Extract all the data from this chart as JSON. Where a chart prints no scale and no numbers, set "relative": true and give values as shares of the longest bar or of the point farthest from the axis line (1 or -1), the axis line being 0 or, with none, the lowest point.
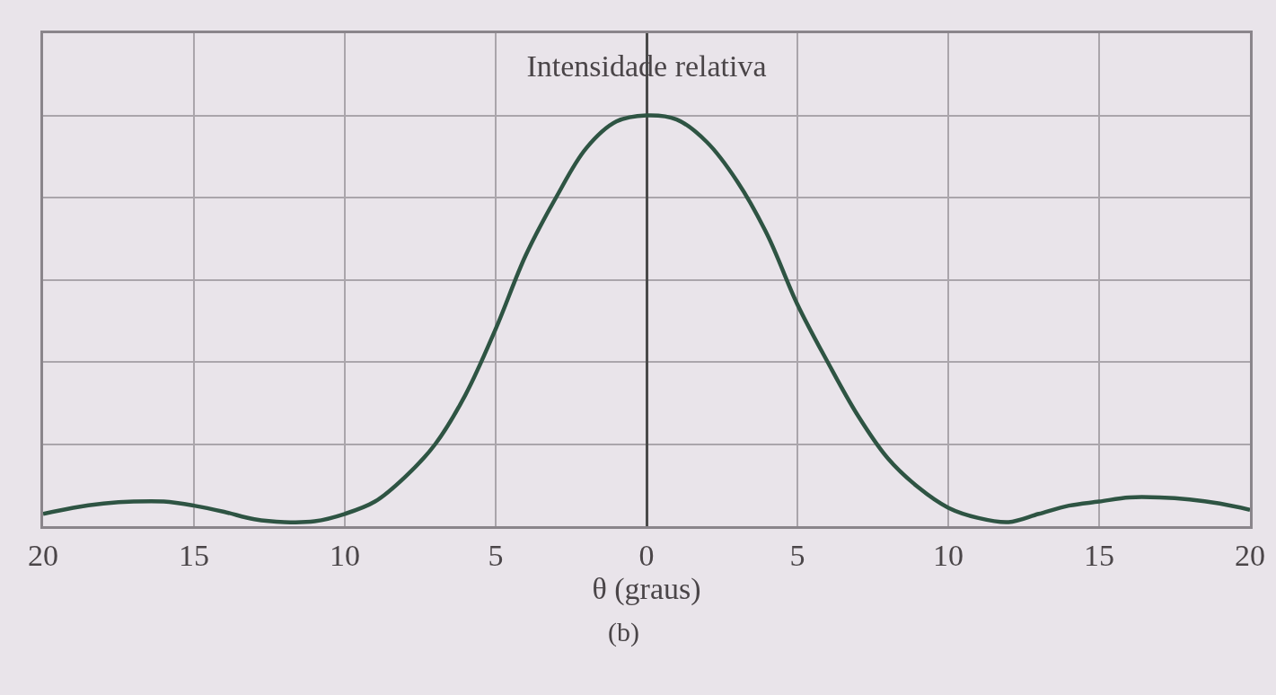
{
  "chart_data": {
    "type": "line",
    "title": "Intensidade relativa",
    "xlabel": "θ (graus)",
    "annotations": [
      "(b)"
    ],
    "x": [
      -20,
      -19,
      -18,
      -17,
      -16,
      -15,
      -14,
      -13,
      -12,
      -11,
      -10,
      -9,
      -8,
      -7,
      -6,
      -5,
      -4,
      -3,
      -2,
      -1,
      0,
      1,
      2,
      3,
      4,
      5,
      6,
      7,
      8,
      9,
      10,
      11,
      12,
      13,
      14,
      15,
      16,
      17,
      18,
      19,
      20
    ],
    "values": [
      0.03,
      0.045,
      0.055,
      0.06,
      0.06,
      0.05,
      0.035,
      0.017,
      0.01,
      0.012,
      0.03,
      0.06,
      0.12,
      0.2,
      0.32,
      0.48,
      0.66,
      0.8,
      0.92,
      0.985,
      1.0,
      0.99,
      0.935,
      0.84,
      0.71,
      0.54,
      0.4,
      0.27,
      0.165,
      0.095,
      0.045,
      0.02,
      0.01,
      0.03,
      0.05,
      0.06,
      0.07,
      0.07,
      0.065,
      0.055,
      0.04
    ],
    "color": "#2e5443",
    "relative": true,
    "line_style": "solid",
    "grid": true,
    "xlim": [
      -20,
      20
    ],
    "xticks": [
      {
        "value": -20,
        "label": "20"
      },
      {
        "value": -15,
        "label": "15"
      },
      {
        "value": -10,
        "label": "10"
      },
      {
        "value": -5,
        "label": "5"
      },
      0,
      5,
      10,
      15,
      20
    ]
  }
}
